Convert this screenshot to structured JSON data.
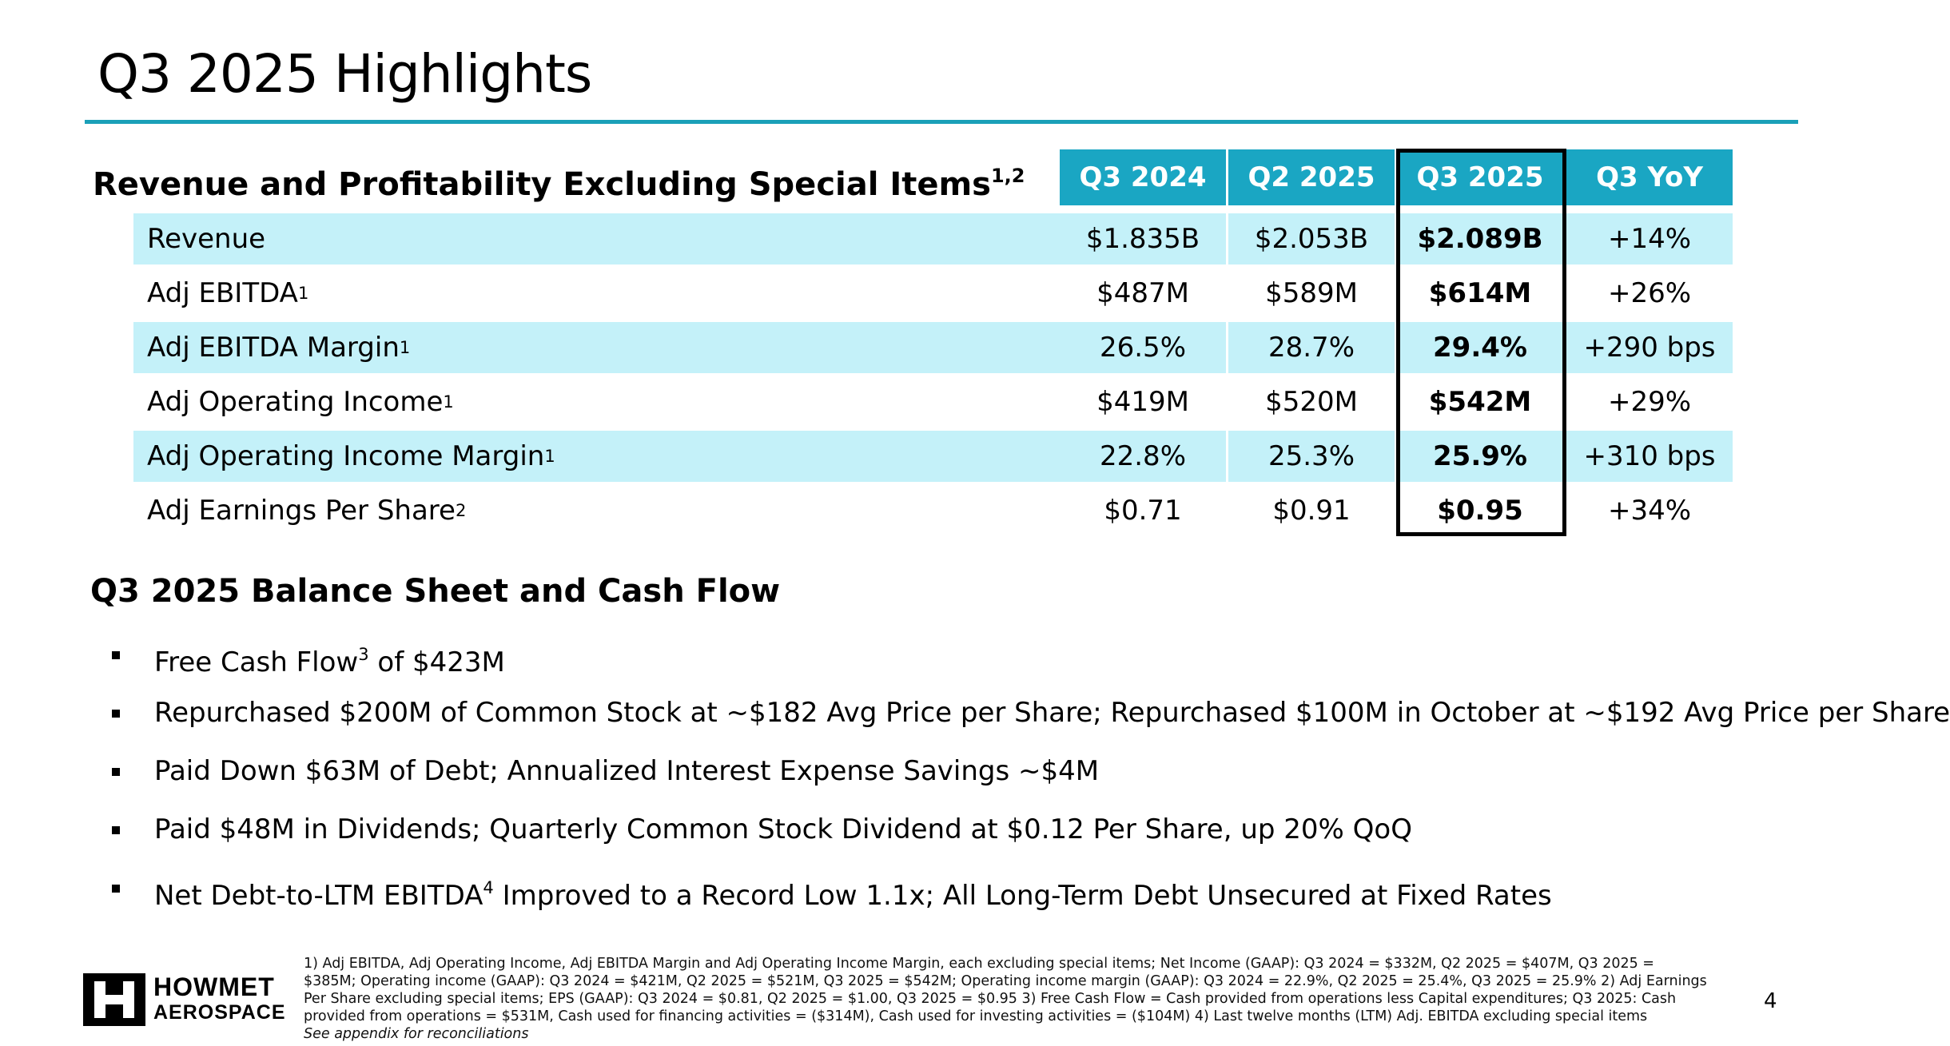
{
  "title": "Q3 2025 Highlights",
  "colors": {
    "accent": "#1aa0b8",
    "header_fill": "#1aa6c3",
    "row_shade": "#c4f1f9"
  },
  "table": {
    "heading": "Revenue and Profitability Excluding Special Items",
    "heading_sup": "1,2",
    "columns": [
      "Q3 2024",
      "Q2 2025",
      "Q3 2025",
      "Q3 YoY"
    ],
    "highlighted_column": "Q3 2025",
    "rows": [
      {
        "label": "Revenue",
        "sup": "",
        "values": [
          "$1.835B",
          "$2.053B",
          "$2.089B",
          "+14%"
        ]
      },
      {
        "label": "Adj EBITDA",
        "sup": "1",
        "values": [
          "$487M",
          "$589M",
          "$614M",
          "+26%"
        ]
      },
      {
        "label": "Adj EBITDA Margin",
        "sup": "1",
        "values": [
          "26.5%",
          "28.7%",
          "29.4%",
          "+290 bps"
        ]
      },
      {
        "label": "Adj Operating Income",
        "sup": "1",
        "values": [
          "$419M",
          "$520M",
          "$542M",
          "+29%"
        ]
      },
      {
        "label": "Adj Operating Income Margin",
        "sup": "1",
        "values": [
          "22.8%",
          "25.3%",
          "25.9%",
          "+310 bps"
        ]
      },
      {
        "label": "Adj Earnings Per Share",
        "sup": "2",
        "values": [
          "$0.71",
          "$0.91",
          "$0.95",
          "+34%"
        ]
      }
    ]
  },
  "balance": {
    "heading": "Q3 2025 Balance Sheet and Cash Flow",
    "bullets": [
      {
        "pre": "Free Cash Flow",
        "sup": "3",
        "post": " of $423M"
      },
      {
        "pre": "Repurchased $200M of Common Stock at ~$182 Avg Price per Share; Repurchased $100M in October at ~$192 Avg Price per Share",
        "sup": "",
        "post": ""
      },
      {
        "pre": "Paid Down $63M of Debt; Annualized Interest Expense Savings ~$4M",
        "sup": "",
        "post": ""
      },
      {
        "pre": "Paid $48M in Dividends; Quarterly Common Stock Dividend at $0.12 Per Share, up 20% QoQ",
        "sup": "",
        "post": ""
      },
      {
        "pre": "Net Debt-to-LTM EBITDA",
        "sup": "4",
        "post": " Improved to a Record Low 1.1x; All Long-Term Debt Unsecured at Fixed Rates"
      }
    ]
  },
  "footer": {
    "logo_line1": "HOWMET",
    "logo_line2": "AEROSPACE",
    "footnote": "1) Adj EBITDA, Adj Operating Income, Adj EBITDA Margin and Adj Operating Income Margin, each excluding special items; Net Income (GAAP): Q3 2024 = $332M, Q2 2025 = $407M, Q3 2025 = $385M; Operating income (GAAP): Q3 2024 = $421M, Q2 2025 = $521M, Q3 2025 = $542M; Operating income margin (GAAP): Q3 2024 = 22.9%, Q2 2025 = 25.4%, Q3 2025 = 25.9%     2) Adj Earnings Per Share excluding special items; EPS (GAAP): Q3 2024 = $0.81, Q2 2025 = $1.00, Q3 2025 = $0.95     3) Free Cash Flow = Cash provided from operations less Capital expenditures; Q3 2025: Cash provided from operations = $531M, Cash used for financing activities = ($314M), Cash used for investing activities = ($104M)     4) Last twelve months (LTM) Adj. EBITDA excluding special items",
    "appendix_note": "See appendix for reconciliations",
    "page_number": "4"
  }
}
